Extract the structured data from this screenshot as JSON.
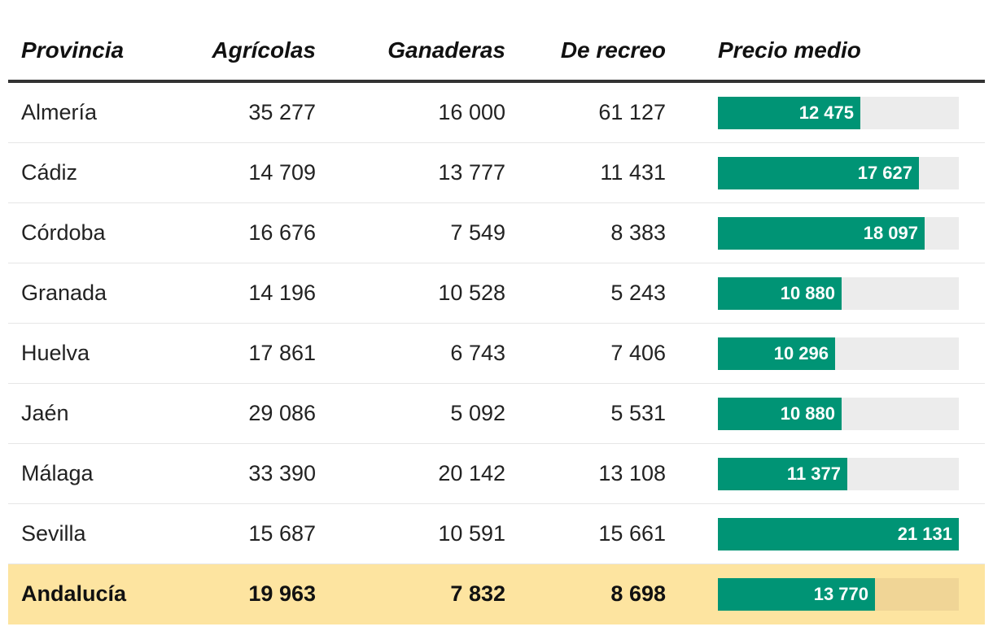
{
  "chart_data": {
    "type": "table",
    "columns": [
      "Provincia",
      "Agrícolas",
      "Ganaderas",
      "De recreo",
      "Precio medio"
    ],
    "bar_column": "Precio medio",
    "bar_max": 21131,
    "rows": [
      {
        "provincia": "Almería",
        "agricolas": "35 277",
        "ganaderas": "16 000",
        "recreo": "61 127",
        "precio_label": "12 475",
        "precio": 12475
      },
      {
        "provincia": "Cádiz",
        "agricolas": "14 709",
        "ganaderas": "13 777",
        "recreo": "11 431",
        "precio_label": "17 627",
        "precio": 17627
      },
      {
        "provincia": "Córdoba",
        "agricolas": "16 676",
        "ganaderas": "7 549",
        "recreo": "8 383",
        "precio_label": "18 097",
        "precio": 18097
      },
      {
        "provincia": "Granada",
        "agricolas": "14 196",
        "ganaderas": "10 528",
        "recreo": "5 243",
        "precio_label": "10 880",
        "precio": 10880
      },
      {
        "provincia": "Huelva",
        "agricolas": "17 861",
        "ganaderas": "6 743",
        "recreo": "7 406",
        "precio_label": "10 296",
        "precio": 10296
      },
      {
        "provincia": "Jaén",
        "agricolas": "29 086",
        "ganaderas": "5 092",
        "recreo": "5 531",
        "precio_label": "10 880",
        "precio": 10880
      },
      {
        "provincia": "Málaga",
        "agricolas": "33 390",
        "ganaderas": "20 142",
        "recreo": "13 108",
        "precio_label": "11 377",
        "precio": 11377
      },
      {
        "provincia": "Sevilla",
        "agricolas": "15 687",
        "ganaderas": "10 591",
        "recreo": "15 661",
        "precio_label": "21 131",
        "precio": 21131
      },
      {
        "provincia": "Andalucía",
        "agricolas": "19 963",
        "ganaderas": "7 832",
        "recreo": "8 698",
        "precio_label": "13 770",
        "precio": 13770,
        "total": true
      }
    ],
    "colors": {
      "bar": "#009475",
      "track": "#ececec",
      "total_row": "#fde4a0",
      "total_track": "#f0d596"
    }
  }
}
